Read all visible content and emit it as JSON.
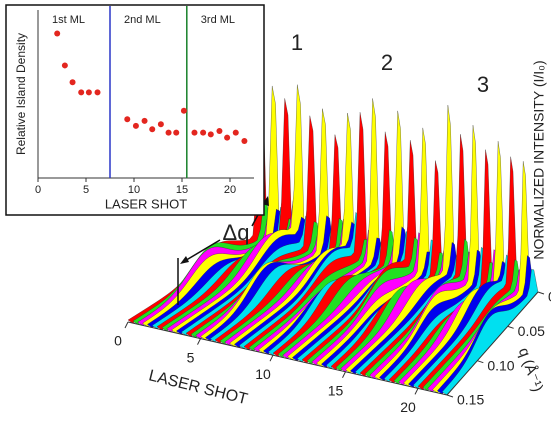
{
  "chart_data": [
    {
      "type": "scatter",
      "xlabel": "LASER SHOT",
      "ylabel": "Relative Island Density",
      "x": [
        2,
        2.8,
        3.6,
        4.5,
        5.3,
        6.2,
        9.3,
        10.2,
        11.1,
        11.9,
        12.8,
        13.6,
        14.4,
        15.2,
        16.3,
        17.2,
        18.0,
        18.9,
        19.7,
        20.6,
        21.5
      ],
      "values": [
        0.86,
        0.67,
        0.57,
        0.51,
        0.51,
        0.51,
        0.35,
        0.31,
        0.34,
        0.29,
        0.32,
        0.27,
        0.27,
        0.4,
        0.27,
        0.27,
        0.26,
        0.28,
        0.24,
        0.27,
        0.22
      ],
      "color": "#e3261f",
      "xlim": [
        0,
        22.5
      ],
      "xticks": [
        0,
        5,
        10,
        15,
        20
      ],
      "ylim": [
        0,
        1
      ],
      "regions": [
        "1st ML",
        "2nd ML",
        "3rd ML"
      ],
      "boundaries": [
        {
          "x": 7.5,
          "color": "#2a36c8"
        },
        {
          "x": 15.5,
          "color": "#17802a"
        }
      ]
    },
    {
      "type": "waterfall3d",
      "xlabel": "LASER SHOT",
      "xlim": [
        0,
        22
      ],
      "xticks": [
        0,
        5,
        10,
        15,
        20
      ],
      "ylabel": "q (Å⁻¹)",
      "ylim": [
        0,
        0.15
      ],
      "yticks": [
        {
          "value": 0,
          "label": "0.00"
        },
        {
          "value": 0.05,
          "label": "0.05"
        },
        {
          "value": 0.1,
          "label": "0.10"
        },
        {
          "value": 0.15,
          "label": "0.15"
        }
      ],
      "zlabel": "NORMALIZED INTENSITY (I/I₀)",
      "annotations": [
        "1",
        "2",
        "3",
        "Δq"
      ],
      "colors": [
        "#ff0000",
        "#22e022",
        "#ff00ff",
        "#ffff00",
        "#0000ee",
        "#00e0f0"
      ]
    }
  ]
}
